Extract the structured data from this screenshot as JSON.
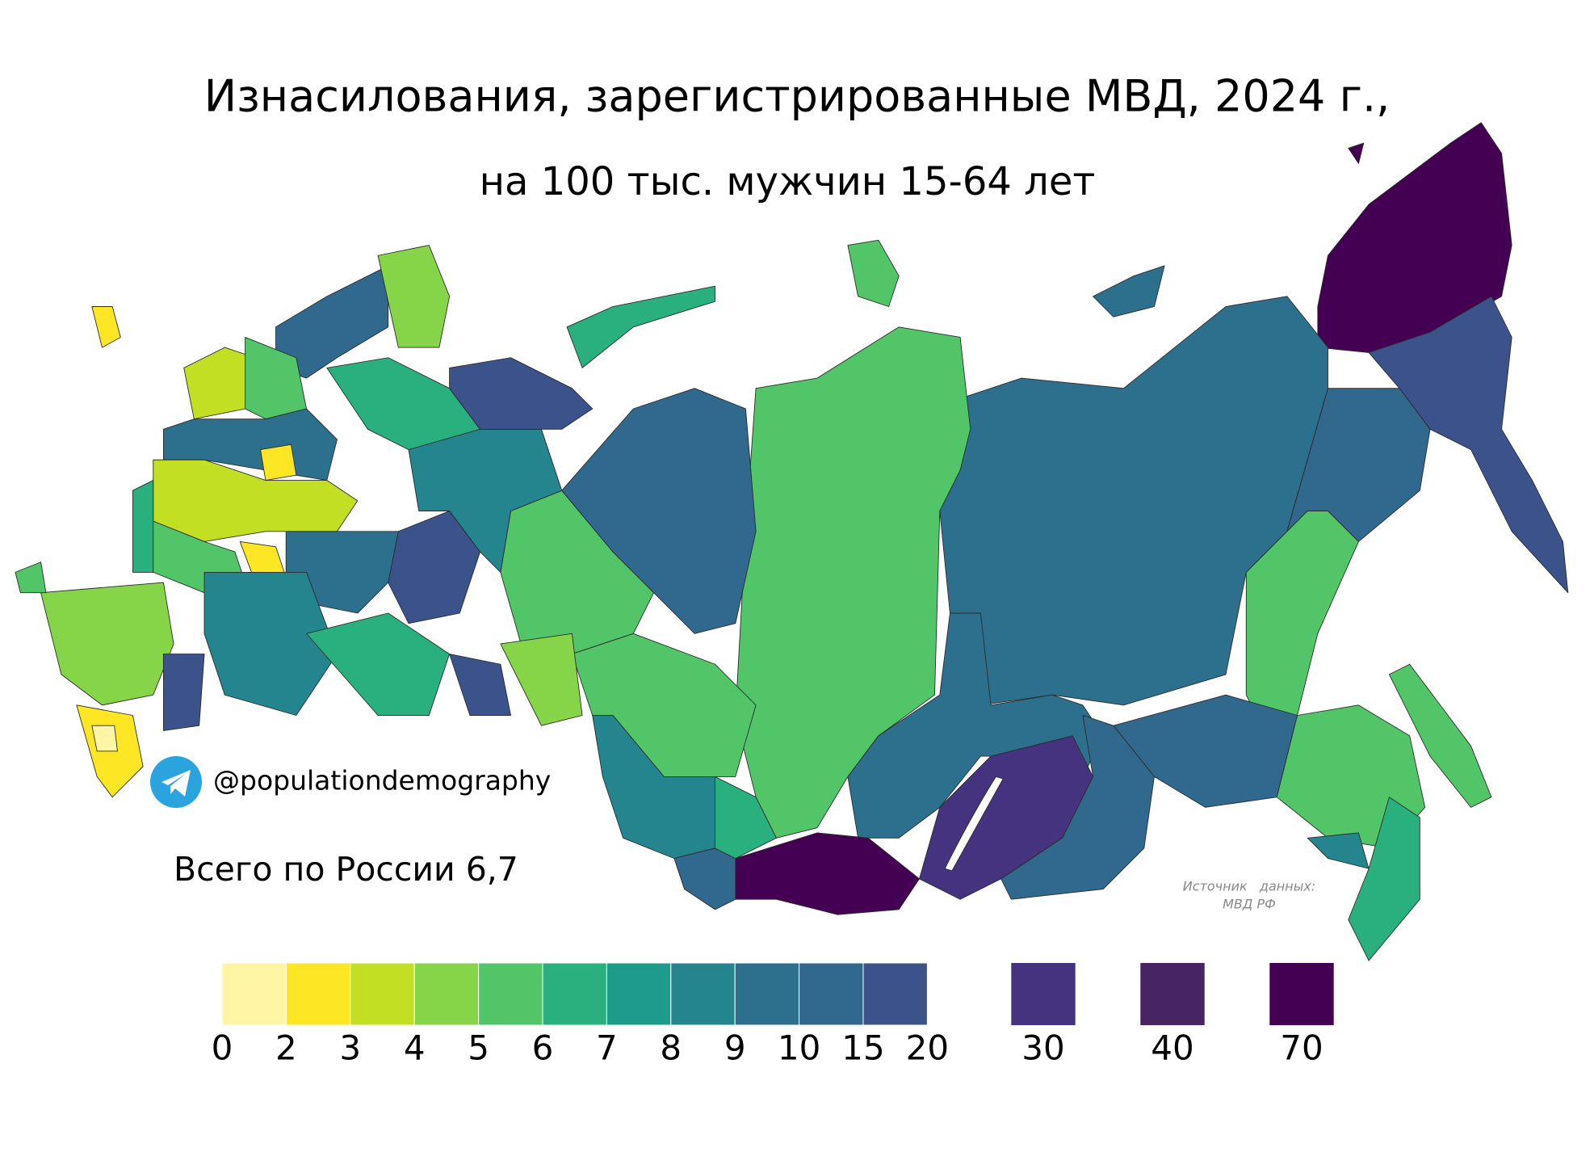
{
  "title": "Изнасилования, зарегистрированные МВД, 2024 г.,",
  "subtitle": "на 100 тыс. мужчин 15-64 лет",
  "telegram": "@populationdemography",
  "total": "Всего по России 6,7",
  "source": {
    "line1": "Источник   данных:",
    "line2": "МВД РФ"
  },
  "legend": {
    "scale": {
      "colors": [
        "#fff5a5",
        "#fde725",
        "#c2df23",
        "#86d549",
        "#52c569",
        "#2ab07f",
        "#1e9b8a",
        "#25858e",
        "#2d708e",
        "#31688e",
        "#3b528b"
      ],
      "ticks": [
        0,
        2,
        3,
        4,
        5,
        6,
        7,
        8,
        9,
        10,
        15,
        20
      ]
    },
    "extra": [
      {
        "color": "#46337f",
        "label": 30
      },
      {
        "color": "#472565",
        "label": 40
      },
      {
        "color": "#440154",
        "label": 70
      }
    ]
  }
}
